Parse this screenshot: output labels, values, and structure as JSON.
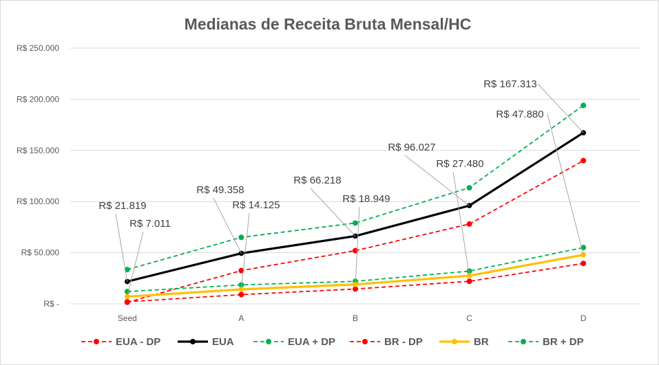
{
  "chart_data": {
    "type": "line",
    "title": "Medianas de Receita Bruta Mensal/HC",
    "categories": [
      "Seed",
      "A",
      "B",
      "C",
      "D"
    ],
    "ylim": [
      0,
      250000
    ],
    "yticks": [
      0,
      50000,
      100000,
      150000,
      200000,
      250000
    ],
    "ytick_labels": [
      "R$ -",
      "R$ 50.000",
      "R$ 100.000",
      "R$ 150.000",
      "R$ 200.000",
      "R$ 250.000"
    ],
    "grid": true,
    "legend_position": "bottom",
    "series": [
      {
        "name": "EUA - DP",
        "values": [
          1500,
          32500,
          52000,
          78000,
          140000
        ],
        "color": "#ff0000",
        "style": "dashed"
      },
      {
        "name": "EUA",
        "values": [
          21819,
          49358,
          66218,
          96027,
          167313
        ],
        "color": "#000000",
        "style": "solid"
      },
      {
        "name": "EUA + DP",
        "values": [
          33500,
          65000,
          79000,
          113500,
          194000
        ],
        "color": "#00b050",
        "style": "dashed"
      },
      {
        "name": "BR - DP",
        "values": [
          2000,
          9000,
          14500,
          22000,
          39500
        ],
        "color": "#ff0000",
        "style": "dashed"
      },
      {
        "name": "BR",
        "values": [
          7011,
          14125,
          18949,
          27480,
          47880
        ],
        "color": "#ffc000",
        "style": "solid"
      },
      {
        "name": "BR + DP",
        "values": [
          12000,
          18500,
          22000,
          32000,
          55000
        ],
        "color": "#00b050",
        "style": "dashed"
      }
    ],
    "annotations": [
      {
        "series": "EUA",
        "category": "Seed",
        "text": "R$ 21.819"
      },
      {
        "series": "BR",
        "category": "Seed",
        "text": "R$ 7.011"
      },
      {
        "series": "EUA",
        "category": "A",
        "text": "R$ 49.358"
      },
      {
        "series": "BR",
        "category": "A",
        "text": "R$ 14.125"
      },
      {
        "series": "EUA",
        "category": "B",
        "text": "R$ 66.218"
      },
      {
        "series": "BR",
        "category": "B",
        "text": "R$ 18.949"
      },
      {
        "series": "EUA",
        "category": "C",
        "text": "R$ 96.027"
      },
      {
        "series": "BR",
        "category": "C",
        "text": "R$ 27.480"
      },
      {
        "series": "EUA",
        "category": "D",
        "text": "R$ 167.313"
      },
      {
        "series": "BR",
        "category": "D",
        "text": "R$ 47.880"
      }
    ]
  }
}
